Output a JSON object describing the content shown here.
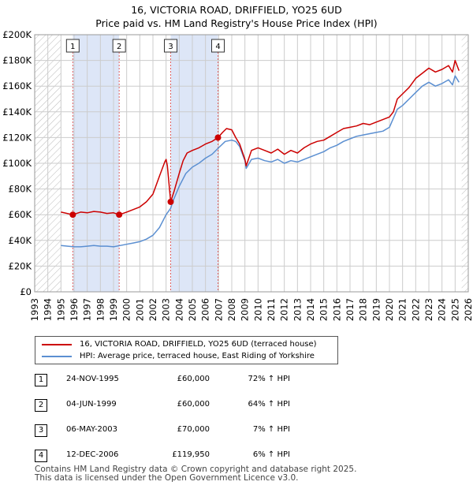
{
  "header": {
    "title_line1": "16, VICTORIA ROAD, DRIFFIELD, YO25 6UD",
    "title_line2": "Price paid vs. HM Land Registry's House Price Index (HPI)"
  },
  "legend": {
    "items": [
      {
        "label": "16, VICTORIA ROAD, DRIFFIELD, YO25 6UD (terraced house)",
        "color": "#cc0000"
      },
      {
        "label": "HPI: Average price, terraced house, East Riding of Yorkshire",
        "color": "#5b8fd1"
      }
    ]
  },
  "sales": [
    {
      "num": "1",
      "date": "24-NOV-1995",
      "price": "£60,000",
      "hpi": "72% ↑ HPI"
    },
    {
      "num": "2",
      "date": "04-JUN-1999",
      "price": "£60,000",
      "hpi": "64% ↑ HPI"
    },
    {
      "num": "3",
      "date": "06-MAY-2003",
      "price": "£70,000",
      "hpi": "7% ↑ HPI"
    },
    {
      "num": "4",
      "date": "12-DEC-2006",
      "price": "£119,950",
      "hpi": "6% ↑ HPI"
    }
  ],
  "footer": {
    "line1": "Contains HM Land Registry data © Crown copyright and database right 2025.",
    "line2": "This data is licensed under the Open Government Licence v3.0."
  },
  "colors": {
    "property_line": "#cc0000",
    "hpi_line": "#5b8fd1",
    "shade": "#dde6f7",
    "grid": "#cccccc",
    "marker_vline": "#e06060"
  },
  "chart_data": {
    "type": "line",
    "title": "Price paid vs. HM Land Registry's House Price Index (HPI)",
    "xlim": [
      1993,
      2026
    ],
    "ylim": [
      0,
      200000
    ],
    "x_ticks": [
      1993,
      1994,
      1995,
      1996,
      1997,
      1998,
      1999,
      2000,
      2001,
      2002,
      2003,
      2004,
      2005,
      2006,
      2007,
      2008,
      2009,
      2010,
      2011,
      2012,
      2013,
      2014,
      2015,
      2016,
      2017,
      2018,
      2019,
      2020,
      2021,
      2022,
      2023,
      2024,
      2025,
      2026
    ],
    "y_ticks": [
      0,
      20000,
      40000,
      60000,
      80000,
      100000,
      120000,
      140000,
      160000,
      180000,
      200000
    ],
    "y_tick_labels": [
      "£0",
      "£20K",
      "£40K",
      "£60K",
      "£80K",
      "£100K",
      "£120K",
      "£140K",
      "£160K",
      "£180K",
      "£200K"
    ],
    "hatched_before": 1995.0,
    "hatched_after": 2025.5,
    "shaded_ranges": [
      [
        1995.9,
        1999.43
      ],
      [
        2003.35,
        2006.95
      ]
    ],
    "markers": [
      {
        "label": "1",
        "x": 1995.9,
        "y": 60000
      },
      {
        "label": "2",
        "x": 1999.43,
        "y": 60000
      },
      {
        "label": "3",
        "x": 2003.35,
        "y": 70000
      },
      {
        "label": "4",
        "x": 2006.95,
        "y": 119950
      }
    ],
    "series": [
      {
        "name": "16, VICTORIA ROAD, DRIFFIELD, YO25 6UD (terraced house)",
        "x": [
          1995.0,
          1995.9,
          1996.5,
          1997.0,
          1997.5,
          1998.0,
          1998.5,
          1999.0,
          1999.43,
          2000.0,
          2000.5,
          2001.0,
          2001.5,
          2002.0,
          2002.5,
          2002.9,
          2003.0,
          2003.1,
          2003.35,
          2003.6,
          2004.0,
          2004.3,
          2004.6,
          2005.0,
          2005.5,
          2006.0,
          2006.5,
          2006.95,
          2007.3,
          2007.6,
          2008.0,
          2008.3,
          2008.6,
          2009.0,
          2009.1,
          2009.5,
          2010.0,
          2010.5,
          2011.0,
          2011.5,
          2012.0,
          2012.5,
          2013.0,
          2013.5,
          2014.0,
          2014.5,
          2015.0,
          2015.5,
          2016.0,
          2016.5,
          2017.0,
          2017.5,
          2018.0,
          2018.5,
          2019.0,
          2019.5,
          2020.0,
          2020.3,
          2020.6,
          2021.0,
          2021.5,
          2022.0,
          2022.5,
          2023.0,
          2023.5,
          2024.0,
          2024.5,
          2024.8,
          2025.0,
          2025.3
        ],
        "y": [
          62000,
          60000,
          62000,
          61500,
          62500,
          62000,
          61000,
          61500,
          60000,
          62000,
          64000,
          66000,
          70000,
          76000,
          90000,
          101000,
          103000,
          98000,
          70000,
          78000,
          92000,
          102000,
          108000,
          110000,
          112000,
          115000,
          117000,
          119950,
          124000,
          127000,
          126000,
          120000,
          115000,
          103000,
          98000,
          110000,
          112000,
          110000,
          108000,
          111000,
          107000,
          110000,
          108000,
          112000,
          115000,
          117000,
          118000,
          121000,
          124000,
          127000,
          128000,
          129000,
          131000,
          130000,
          132000,
          134000,
          136000,
          140000,
          150000,
          154000,
          159000,
          166000,
          170000,
          174000,
          171000,
          173000,
          176000,
          171000,
          180000,
          172000
        ]
      },
      {
        "name": "HPI: Average price, terraced house, East Riding of Yorkshire",
        "x": [
          1995.0,
          1995.5,
          1996.0,
          1996.5,
          1997.0,
          1997.5,
          1998.0,
          1998.5,
          1999.0,
          1999.5,
          2000.0,
          2000.5,
          2001.0,
          2001.5,
          2002.0,
          2002.5,
          2003.0,
          2003.35,
          2003.5,
          2004.0,
          2004.5,
          2005.0,
          2005.5,
          2006.0,
          2006.5,
          2007.0,
          2007.5,
          2008.0,
          2008.3,
          2008.6,
          2009.0,
          2009.1,
          2009.5,
          2010.0,
          2010.5,
          2011.0,
          2011.5,
          2012.0,
          2012.5,
          2013.0,
          2013.5,
          2014.0,
          2014.5,
          2015.0,
          2015.5,
          2016.0,
          2016.5,
          2017.0,
          2017.5,
          2018.0,
          2018.5,
          2019.0,
          2019.5,
          2020.0,
          2020.3,
          2020.6,
          2021.0,
          2021.5,
          2022.0,
          2022.5,
          2023.0,
          2023.5,
          2024.0,
          2024.5,
          2024.8,
          2025.0,
          2025.3
        ],
        "y": [
          36000,
          35500,
          35000,
          35000,
          35500,
          36000,
          35500,
          35500,
          35000,
          36000,
          37000,
          38000,
          39000,
          41000,
          44000,
          50000,
          60000,
          65000,
          70000,
          82000,
          92000,
          97000,
          100000,
          104000,
          107000,
          112000,
          117000,
          118000,
          117000,
          113000,
          102000,
          96000,
          103000,
          104000,
          102000,
          101000,
          103000,
          100000,
          102000,
          101000,
          103000,
          105000,
          107000,
          109000,
          112000,
          114000,
          117000,
          119000,
          121000,
          122000,
          123000,
          124000,
          125000,
          128000,
          135000,
          142000,
          145000,
          150000,
          155000,
          160000,
          163000,
          160000,
          162000,
          165000,
          161000,
          168000,
          163000
        ]
      }
    ]
  }
}
